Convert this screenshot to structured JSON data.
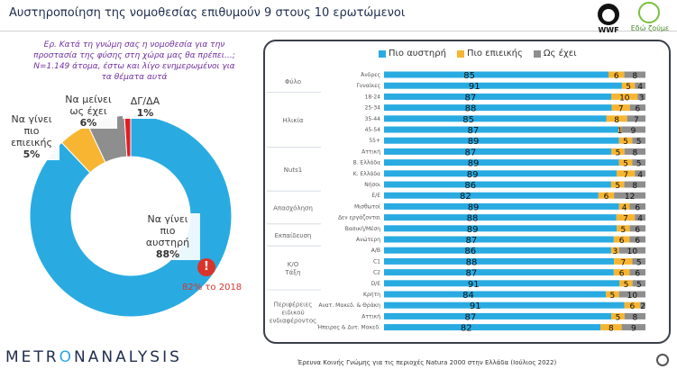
{
  "title": "Αυστηροποίηση της νομοθεσίας επιθυμούν 9 στους 10 ερωτώμενοι",
  "question": "Ερ. Κατά τη γνώμη σας η νομοθεσία για την προστασία της φύσης στη χώρα μας θα πρέπει…; N=1.149 άτομα, έστω και λίγο ενημερωμένοι για τα θέματα αυτά",
  "logos": {
    "wwf": "WWF",
    "edo": "Εδώ ζούμε"
  },
  "colors": {
    "strict": "#29abe2",
    "lenient": "#f7b531",
    "same": "#8e8e8e",
    "dk": "#e31c23"
  },
  "donut": [
    {
      "label_lines": [
        "Να γίνει",
        "πιο",
        "αυστηρή"
      ],
      "pct": "88%",
      "value": 88,
      "color": "#29abe2"
    },
    {
      "label_lines": [
        "Να γίνει",
        "πιο",
        "επιεικής"
      ],
      "pct": "5%",
      "value": 5,
      "color": "#f7b531"
    },
    {
      "label_lines": [
        "Να μείνει",
        "ως έχει"
      ],
      "pct": "6%",
      "value": 6,
      "color": "#8e8e8e"
    },
    {
      "label_lines": [
        "ΔΓ/ΔΑ"
      ],
      "pct": "1%",
      "value": 1,
      "color": "#e31c23"
    }
  ],
  "note_2018": "82% το 2018",
  "footer": {
    "brand_a": "METR",
    "brand_b": "O",
    "brand_c": "NANALYSIS",
    "note": "Έρευνα Κοινής Γνώμης για τις περιοχές Natura 2000 στην Ελλάδα (Ιούλιος 2022)"
  },
  "chart_data": {
    "type": "bar",
    "stacked": true,
    "orientation": "horizontal",
    "series": [
      {
        "name": "Πιο αυστηρή",
        "key": "strict"
      },
      {
        "name": "Πιο επιεικής",
        "key": "lenient"
      },
      {
        "name": "Ως έχει",
        "key": "same"
      }
    ],
    "groups": [
      {
        "name": "Φύλο",
        "rows": [
          {
            "label": "Άνδρες",
            "values": [
              85,
              6,
              8
            ]
          },
          {
            "label": "Γυναίκες",
            "values": [
              91,
              5,
              4
            ]
          }
        ]
      },
      {
        "name": "Ηλικία",
        "rows": [
          {
            "label": "18-24",
            "values": [
              87,
              10,
              3
            ]
          },
          {
            "label": "25-34",
            "values": [
              88,
              7,
              6
            ]
          },
          {
            "label": "35-44",
            "values": [
              85,
              8,
              7
            ]
          },
          {
            "label": "45-54",
            "values": [
              87,
              1,
              9
            ]
          },
          {
            "label": "55+",
            "values": [
              89,
              5,
              5
            ]
          }
        ]
      },
      {
        "name": "Nuts1",
        "rows": [
          {
            "label": "Αττική",
            "values": [
              87,
              5,
              8
            ]
          },
          {
            "label": "Β. Ελλάδα",
            "values": [
              89,
              5,
              5
            ]
          },
          {
            "label": "Κ. Ελλάδα",
            "values": [
              89,
              7,
              4
            ]
          },
          {
            "label": "Νήσοι",
            "values": [
              86,
              5,
              8
            ]
          }
        ]
      },
      {
        "name": "Απασχόληση",
        "rows": [
          {
            "label": "Ε/Ε",
            "values": [
              82,
              6,
              12
            ]
          },
          {
            "label": "Μισθωτοί",
            "values": [
              89,
              4,
              6
            ]
          },
          {
            "label": "Δεν εργάζονται",
            "values": [
              88,
              7,
              4
            ]
          }
        ]
      },
      {
        "name": "Εκπαίδευση",
        "rows": [
          {
            "label": "Βασική/Μέση",
            "values": [
              89,
              5,
              6
            ]
          },
          {
            "label": "Ανώτερη",
            "values": [
              87,
              6,
              6
            ]
          }
        ]
      },
      {
        "name": "Κ/Ο Τάξη",
        "rows": [
          {
            "label": "Α/Β",
            "values": [
              86,
              3,
              10
            ]
          },
          {
            "label": "C1",
            "values": [
              88,
              7,
              5
            ]
          },
          {
            "label": "C2",
            "values": [
              87,
              6,
              6
            ]
          },
          {
            "label": "D/E",
            "values": [
              91,
              5,
              5
            ]
          }
        ]
      },
      {
        "name": "Περιφέρειες ειδικού ενδιαφέροντος",
        "rows": [
          {
            "label": "Κρήτη",
            "values": [
              84,
              5,
              10
            ]
          },
          {
            "label": "Ανατ. Μακεδ. & Θράκη",
            "values": [
              91,
              6,
              2
            ]
          },
          {
            "label": "Αττική",
            "values": [
              87,
              5,
              8
            ]
          },
          {
            "label": "Ήπειρος & Δυτ. Μακεδ.",
            "values": [
              82,
              8,
              9
            ]
          }
        ]
      }
    ]
  }
}
